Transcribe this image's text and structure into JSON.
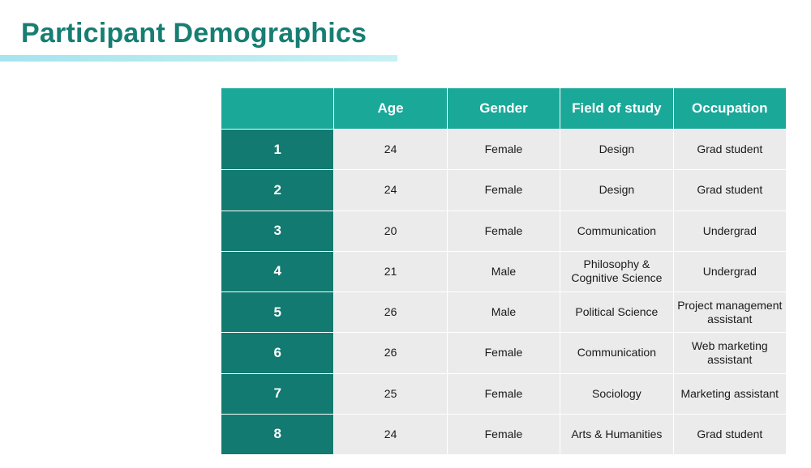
{
  "title": "Participant Demographics",
  "table": {
    "headers": [
      "",
      "Age",
      "Gender",
      "Field of study",
      "Occupation"
    ],
    "rows": [
      {
        "id": "1",
        "age": "24",
        "gender": "Female",
        "field": "Design",
        "occupation": "Grad student"
      },
      {
        "id": "2",
        "age": "24",
        "gender": "Female",
        "field": "Design",
        "occupation": "Grad student"
      },
      {
        "id": "3",
        "age": "20",
        "gender": "Female",
        "field": "Communication",
        "occupation": "Undergrad"
      },
      {
        "id": "4",
        "age": "21",
        "gender": "Male",
        "field": "Philosophy & Cognitive Science",
        "occupation": "Undergrad"
      },
      {
        "id": "5",
        "age": "26",
        "gender": "Male",
        "field": "Political Science",
        "occupation": "Project management assistant"
      },
      {
        "id": "6",
        "age": "26",
        "gender": "Female",
        "field": "Communication",
        "occupation": "Web marketing assistant"
      },
      {
        "id": "7",
        "age": "25",
        "gender": "Female",
        "field": "Sociology",
        "occupation": "Marketing assistant"
      },
      {
        "id": "8",
        "age": "24",
        "gender": "Female",
        "field": "Arts & Humanities",
        "occupation": "Grad student"
      }
    ]
  }
}
